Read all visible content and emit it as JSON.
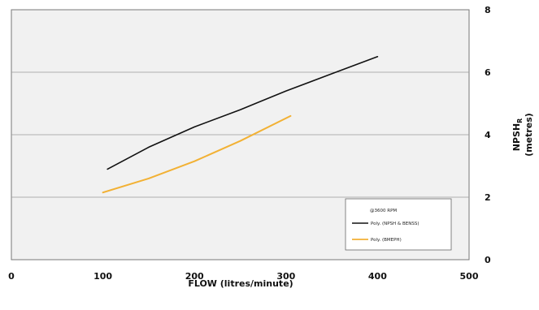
{
  "chart_data": {
    "type": "line",
    "xlabel": "FLOW (litres/minute)",
    "ylabel": {
      "main": "NPSH",
      "subscript": "R",
      "units": "(metres)"
    },
    "xlim": [
      0,
      500
    ],
    "ylim": [
      0,
      8
    ],
    "x_ticks": [
      "0",
      "100",
      "200",
      "300",
      "400",
      "500"
    ],
    "y_ticks": [
      "0",
      "2",
      "4",
      "6",
      "8"
    ],
    "y_axis_side": "right",
    "grid": "horizontal",
    "legend": {
      "placement": "bottom-right",
      "title": "@3600 RPM",
      "entries": [
        "Poly. (NPSH & BENSS)",
        "Poly. (BMEPH)"
      ]
    },
    "series": [
      {
        "name": "Poly. (NPSH & BENSS)",
        "color": "#111111",
        "x": [
          105,
          150,
          200,
          250,
          300,
          350,
          400
        ],
        "y": [
          2.9,
          3.6,
          4.25,
          4.8,
          5.4,
          5.95,
          6.5
        ]
      },
      {
        "name": "Poly. (BMEPH)",
        "color": "#f2b134",
        "x": [
          100,
          150,
          200,
          250,
          305
        ],
        "y": [
          2.15,
          2.6,
          3.15,
          3.8,
          4.6
        ]
      }
    ]
  }
}
